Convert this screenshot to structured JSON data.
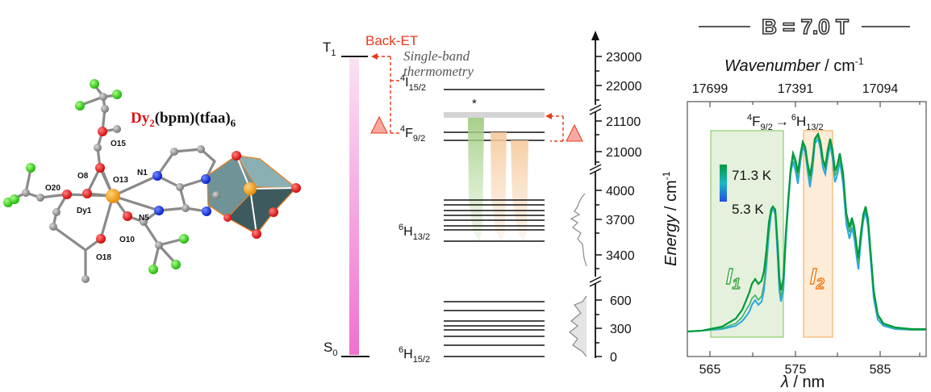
{
  "compound": {
    "prefix": "Dy",
    "sub2": "2",
    "rest": "(bpm)(tfaa)",
    "sub6": "6",
    "atom_labels": [
      "O15",
      "N1",
      "O8",
      "O13",
      "O20",
      "Dy1",
      "N5",
      "O10",
      "O18"
    ]
  },
  "energy_diagram": {
    "back_et": "Back-ET",
    "t1_letter": "T",
    "t1_sub": "1",
    "s0_letter": "S",
    "s0_sub": "0",
    "single_band_line1": "Single-band",
    "single_band_line2": "thermometry",
    "star": "*",
    "i15_sup": "4",
    "i15_main": "I",
    "i15_sub": "15/2",
    "f92_sup": "4",
    "f92_main": "F",
    "f92_sub": "9/2",
    "h132_sup": "6",
    "h132_main": "H",
    "h132_sub": "13/2",
    "h152_sup": "6",
    "h152_main": "H",
    "h152_sub": "15/2",
    "axis_ticks": [
      "23000",
      "22000",
      "21100",
      "21000",
      "4000",
      "3700",
      "3400",
      "600",
      "300",
      "0"
    ]
  },
  "spectrum": {
    "field_label": "B = 7.0 T",
    "top_axis_label": "Wavenumber",
    "top_axis_unit": " / cm",
    "top_axis_sup": "-1",
    "top_ticks": [
      "17699",
      "17391",
      "17094"
    ],
    "transition_from_sup": "4",
    "transition_from_main": "F",
    "transition_from_sub": "9/2",
    "arrow": "→",
    "transition_to_sup": "6",
    "transition_to_main": "H",
    "transition_to_sub": "13/2",
    "temp_high": "71.3 K",
    "temp_low": "5.3 K",
    "y_label": "Energy",
    "y_unit": " / cm",
    "y_sup": "-1",
    "band1_main": "I",
    "band1_sub": "1",
    "band2_main": "I",
    "band2_sub": "2",
    "x_ticks": [
      "565",
      "575",
      "585"
    ],
    "x_label": "λ",
    "x_unit": " / nm",
    "colors": {
      "band1": "#e1efd7",
      "band2": "#fde9d0",
      "highT": "#009a3c",
      "lowT": "#2a9de0",
      "accent": "#e8391d"
    }
  }
}
